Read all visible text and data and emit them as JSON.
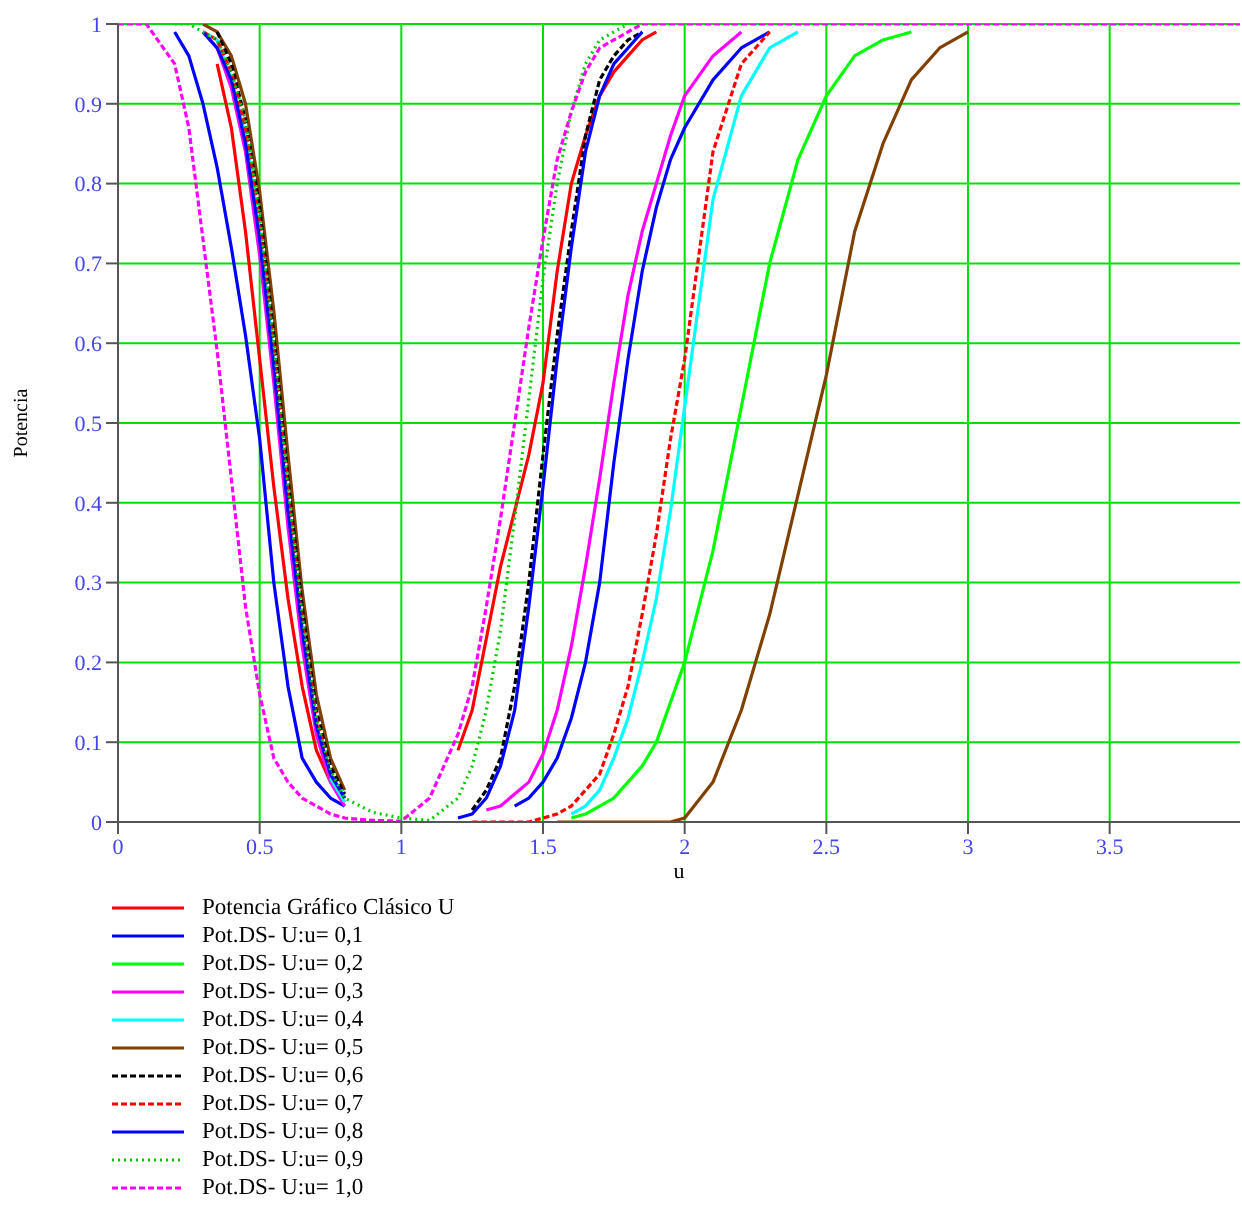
{
  "chart_data": {
    "type": "line",
    "xlabel": "u",
    "ylabel": "Potencia",
    "x": [
      0,
      0.1,
      0.2,
      0.25,
      0.3,
      0.35,
      0.4,
      0.45,
      0.5,
      0.55,
      0.6,
      0.65,
      0.7,
      0.75,
      0.8,
      0.9,
      1,
      1.1,
      1.2,
      1.25,
      1.3,
      1.35,
      1.4,
      1.45,
      1.5,
      1.55,
      1.6,
      1.65,
      1.7,
      1.75,
      1.8,
      1.85,
      1.9,
      1.95,
      2,
      2.1,
      2.2,
      2.3,
      2.4,
      2.5,
      2.6,
      2.7,
      2.8,
      2.9,
      3,
      3.1,
      3.2,
      3.5,
      3.96
    ],
    "xlim": [
      0,
      3.96
    ],
    "xticks": [
      0,
      0.5,
      1,
      1.5,
      2,
      2.5,
      3,
      3.5
    ],
    "ylim": [
      0,
      1
    ],
    "yticks": [
      0,
      0.1,
      0.2,
      0.3,
      0.4,
      0.5,
      0.6,
      0.7,
      0.8,
      0.9,
      1
    ],
    "grid": true,
    "legend": "bottom",
    "series": [
      {
        "name": "Potencia Gráfico Clásico U",
        "color": "#ff0000",
        "line_style": "solid",
        "values": [
          null,
          null,
          null,
          null,
          null,
          0.95,
          0.87,
          0.74,
          0.58,
          0.42,
          0.28,
          0.17,
          0.09,
          0.05,
          null,
          null,
          null,
          null,
          0.09,
          0.14,
          0.23,
          0.32,
          0.39,
          0.46,
          0.55,
          0.69,
          0.8,
          0.86,
          0.91,
          0.94,
          0.96,
          0.98,
          0.99,
          null,
          null,
          null,
          null,
          null,
          null,
          null,
          null,
          null,
          null,
          null,
          null,
          null,
          null,
          null,
          null
        ]
      },
      {
        "name": "Pot.DS- U:u= 0,1",
        "color": "#0000ff",
        "line_style": "solid",
        "values": [
          null,
          null,
          0.99,
          0.96,
          0.9,
          0.82,
          0.72,
          0.61,
          0.48,
          0.3,
          0.17,
          0.08,
          0.05,
          0.03,
          0.02,
          null,
          null,
          null,
          null,
          null,
          null,
          null,
          0.02,
          0.03,
          0.05,
          0.08,
          0.13,
          0.2,
          0.3,
          0.45,
          0.58,
          0.69,
          0.77,
          0.83,
          0.87,
          0.93,
          0.97,
          0.99,
          null,
          null,
          null,
          null,
          null,
          null,
          null,
          null,
          null,
          null,
          null
        ]
      },
      {
        "name": "Pot.DS- U:u= 0,2",
        "color": "#00ff00",
        "line_style": "solid",
        "values": [
          null,
          null,
          null,
          null,
          0.99,
          0.97,
          0.93,
          0.85,
          0.72,
          0.56,
          0.38,
          0.23,
          0.12,
          0.05,
          0.025,
          null,
          null,
          null,
          null,
          null,
          null,
          null,
          null,
          null,
          null,
          null,
          0.005,
          0.01,
          0.02,
          0.03,
          0.05,
          0.07,
          0.1,
          0.15,
          0.2,
          0.34,
          0.52,
          0.7,
          0.83,
          0.91,
          0.96,
          0.98,
          0.99,
          null,
          null,
          null,
          null,
          null,
          null
        ]
      },
      {
        "name": "Pot.DS- U:u= 0,3",
        "color": "#ff00ff",
        "line_style": "solid",
        "values": [
          null,
          null,
          null,
          null,
          0.99,
          0.97,
          0.92,
          0.84,
          0.71,
          0.55,
          0.37,
          0.22,
          0.11,
          0.05,
          0.02,
          null,
          null,
          null,
          null,
          null,
          0.015,
          0.02,
          0.035,
          0.05,
          0.085,
          0.14,
          0.22,
          0.32,
          0.43,
          0.55,
          0.66,
          0.74,
          0.8,
          0.86,
          0.91,
          0.96,
          0.99,
          null,
          null,
          null,
          null,
          null,
          null,
          null,
          null,
          null,
          null,
          null,
          null
        ]
      },
      {
        "name": "Pot.DS- U:u= 0,4",
        "color": "#00ffff",
        "line_style": "solid",
        "values": [
          null,
          null,
          null,
          null,
          0.99,
          0.98,
          0.93,
          0.86,
          0.74,
          0.58,
          null,
          null,
          null,
          0.055,
          0.025,
          null,
          null,
          null,
          null,
          null,
          null,
          null,
          null,
          null,
          null,
          null,
          0.01,
          0.02,
          0.04,
          0.08,
          0.13,
          0.2,
          0.28,
          0.39,
          0.52,
          0.78,
          0.91,
          0.97,
          0.99,
          null,
          null,
          null,
          null,
          null,
          null,
          null,
          null,
          null,
          null
        ]
      },
      {
        "name": "Pot.DS- U:u= 0,5",
        "color": "#804000",
        "line_style": "solid",
        "values": [
          null,
          null,
          null,
          null,
          1,
          0.99,
          0.96,
          0.9,
          0.79,
          0.64,
          0.46,
          0.29,
          0.16,
          0.08,
          0.04,
          null,
          null,
          null,
          null,
          null,
          null,
          null,
          null,
          null,
          null,
          0,
          0,
          0,
          0,
          0,
          0,
          0,
          0,
          0,
          0.005,
          0.05,
          0.14,
          0.26,
          0.41,
          0.56,
          0.74,
          0.85,
          0.93,
          0.97,
          0.99,
          null,
          null,
          null,
          null
        ]
      },
      {
        "name": "Pot.DS- U:u= 0,6",
        "color": "#000000",
        "line_style": "dashed",
        "values": [
          null,
          null,
          null,
          null,
          null,
          0.99,
          0.95,
          0.88,
          0.77,
          0.61,
          0.43,
          0.27,
          0.14,
          0.07,
          0.035,
          null,
          null,
          null,
          null,
          0.015,
          0.04,
          0.08,
          0.17,
          0.3,
          0.46,
          0.61,
          0.74,
          0.86,
          0.93,
          0.96,
          0.98,
          0.99,
          null,
          null,
          null,
          null,
          null,
          null,
          null,
          null,
          null,
          null,
          null,
          null,
          null,
          null,
          null,
          null,
          null
        ]
      },
      {
        "name": "Pot.DS- U:u= 0,7",
        "color": "#ff0000",
        "line_style": "dashed",
        "values": [
          null,
          null,
          null,
          null,
          0.99,
          0.98,
          0.94,
          0.87,
          0.75,
          0.59,
          0.41,
          0.25,
          0.13,
          0.06,
          0.03,
          null,
          null,
          null,
          null,
          0,
          0,
          0,
          0,
          0,
          0.005,
          0.01,
          0.02,
          0.04,
          0.06,
          0.11,
          0.17,
          0.26,
          0.36,
          0.48,
          0.58,
          0.84,
          0.95,
          0.99,
          null,
          null,
          null,
          null,
          null,
          null,
          null,
          null,
          null,
          null,
          null
        ]
      },
      {
        "name": "Pot.DS- U:u= 0,8",
        "color": "#0000ff",
        "line_style": "solid",
        "values": [
          null,
          null,
          null,
          null,
          0.99,
          0.97,
          0.93,
          0.85,
          0.73,
          0.57,
          0.39,
          0.24,
          0.12,
          0.06,
          0.03,
          null,
          null,
          null,
          0.005,
          0.01,
          0.03,
          0.07,
          0.14,
          0.27,
          0.42,
          0.58,
          0.72,
          0.84,
          0.91,
          0.95,
          0.97,
          0.99,
          null,
          null,
          null,
          null,
          null,
          null,
          null,
          null,
          null,
          null,
          null,
          null,
          null,
          null,
          null,
          null,
          null
        ]
      },
      {
        "name": "Pot.DS- U:u= 0,9",
        "color": "#00cc00",
        "line_style": "dotted",
        "values": [
          null,
          null,
          1,
          1,
          0.99,
          0.98,
          0.94,
          0.88,
          0.76,
          0.6,
          0.42,
          0.26,
          0.13,
          0.065,
          0.03,
          0.012,
          0.005,
          0.002,
          0.03,
          0.07,
          0.14,
          0.24,
          0.38,
          0.53,
          0.68,
          0.8,
          0.89,
          0.95,
          0.98,
          0.99,
          1,
          null,
          null,
          null,
          null,
          null,
          null,
          null,
          null,
          null,
          null,
          null,
          null,
          null,
          null,
          null,
          null,
          null,
          null
        ]
      },
      {
        "name": "Pot.DS- U:u= 1,0",
        "color": "#ff00ff",
        "line_style": "dashed",
        "values": [
          1,
          1,
          0.95,
          0.87,
          0.73,
          0.59,
          0.43,
          0.27,
          0.16,
          0.08,
          0.05,
          0.03,
          0.02,
          0.01,
          0.005,
          0.002,
          0.001,
          0.03,
          0.11,
          0.17,
          0.27,
          0.38,
          0.5,
          0.62,
          0.73,
          0.83,
          0.89,
          0.94,
          0.97,
          0.98,
          0.99,
          1,
          1,
          1,
          1,
          1,
          1,
          1,
          1,
          1,
          1,
          1,
          1,
          1,
          1,
          1,
          1,
          1,
          1
        ]
      }
    ]
  }
}
